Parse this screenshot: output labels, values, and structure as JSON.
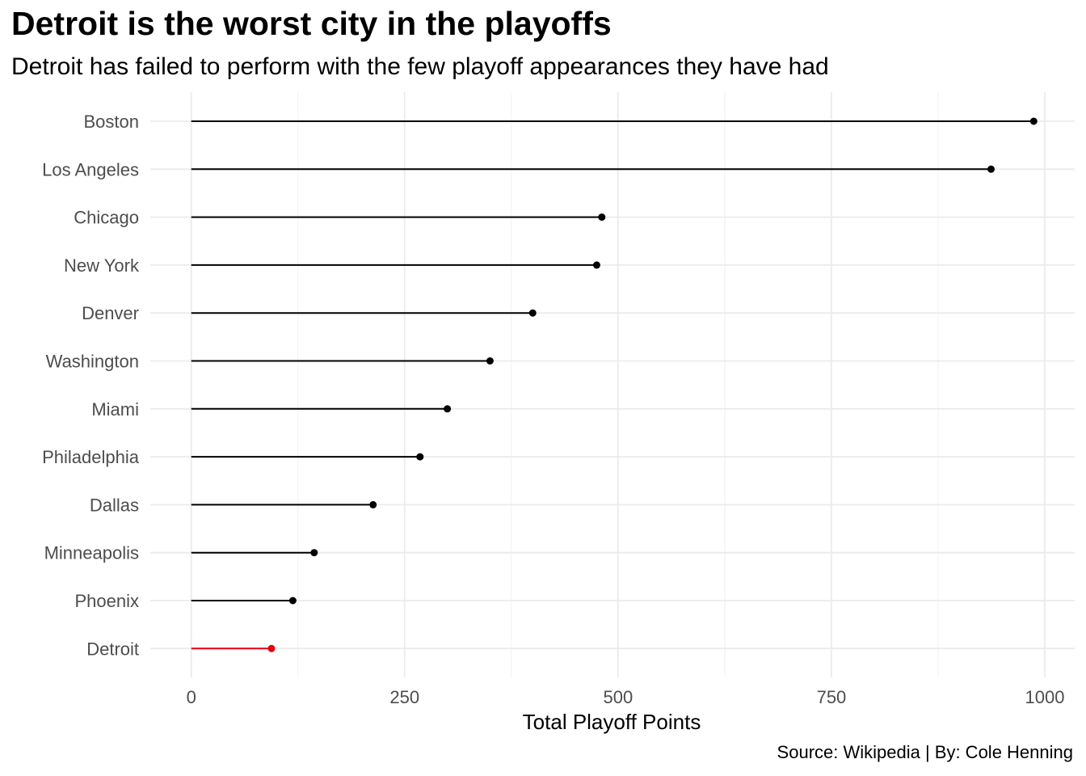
{
  "header": {
    "title": "Detroit is the worst city in the playoffs",
    "subtitle": "Detroit has failed to perform with the few playoff appearances they have had"
  },
  "footer": {
    "caption": "Source: Wikipedia | By: Cole Henning"
  },
  "colors": {
    "default": "#000000",
    "highlight": "#e3000f",
    "grid_major": "#ebebeb",
    "grid_minor": "#f3f3f3"
  },
  "chart_data": {
    "type": "lollipop",
    "title": "Detroit is the worst city in the playoffs",
    "subtitle": "Detroit has failed to perform with the few playoff appearances they have had",
    "xlabel": "Total Playoff Points",
    "ylabel": "",
    "xlim": [
      -48,
      1035
    ],
    "x_ticks": [
      0,
      250,
      500,
      750,
      1000
    ],
    "x_tick_labels": [
      "0",
      "250",
      "500",
      "750",
      "1000"
    ],
    "grid": true,
    "legend": "none",
    "highlight": "Detroit",
    "categories": [
      "Boston",
      "Los Angeles",
      "Chicago",
      "New York",
      "Denver",
      "Washington",
      "Miami",
      "Philadelphia",
      "Dallas",
      "Minneapolis",
      "Phoenix",
      "Detroit"
    ],
    "values": [
      987,
      937,
      481,
      475,
      400,
      350,
      300,
      268,
      213,
      144,
      119,
      94
    ]
  }
}
